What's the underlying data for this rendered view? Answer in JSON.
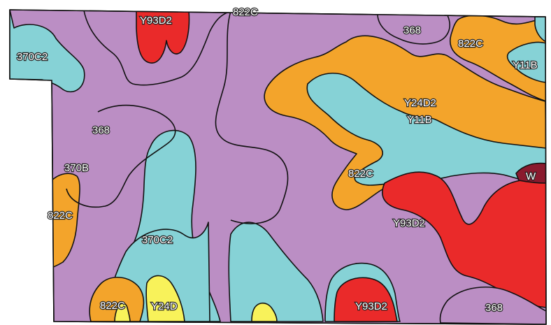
{
  "map": {
    "colors": {
      "purple": "#bb8ec4",
      "cyan": "#86d2d6",
      "orange": "#f3a42b",
      "red": "#ea2a2a",
      "yellow": "#f8f25a",
      "maroon": "#8a1a2e"
    },
    "labels": {
      "y93d2_top": "Y93D2",
      "c822_top": "822C",
      "s368_top": "368",
      "c822_right": "822C",
      "y11b_right": "Y11B",
      "c370c2_left": "370C2",
      "y24d2_mid": "Y24D2",
      "y11b_mid": "Y11B",
      "s368_left": "368",
      "b370b_left": "370B",
      "c822_mid": "822C",
      "w_right": "W",
      "c822_left": "822C",
      "y93d2_mid": "Y93D2",
      "c370c2_low": "370C2",
      "c822_bottom": "822C",
      "y24d_bottom": "Y24D",
      "y93d2_bottom": "Y93D2",
      "s368_bottom": "368"
    }
  }
}
